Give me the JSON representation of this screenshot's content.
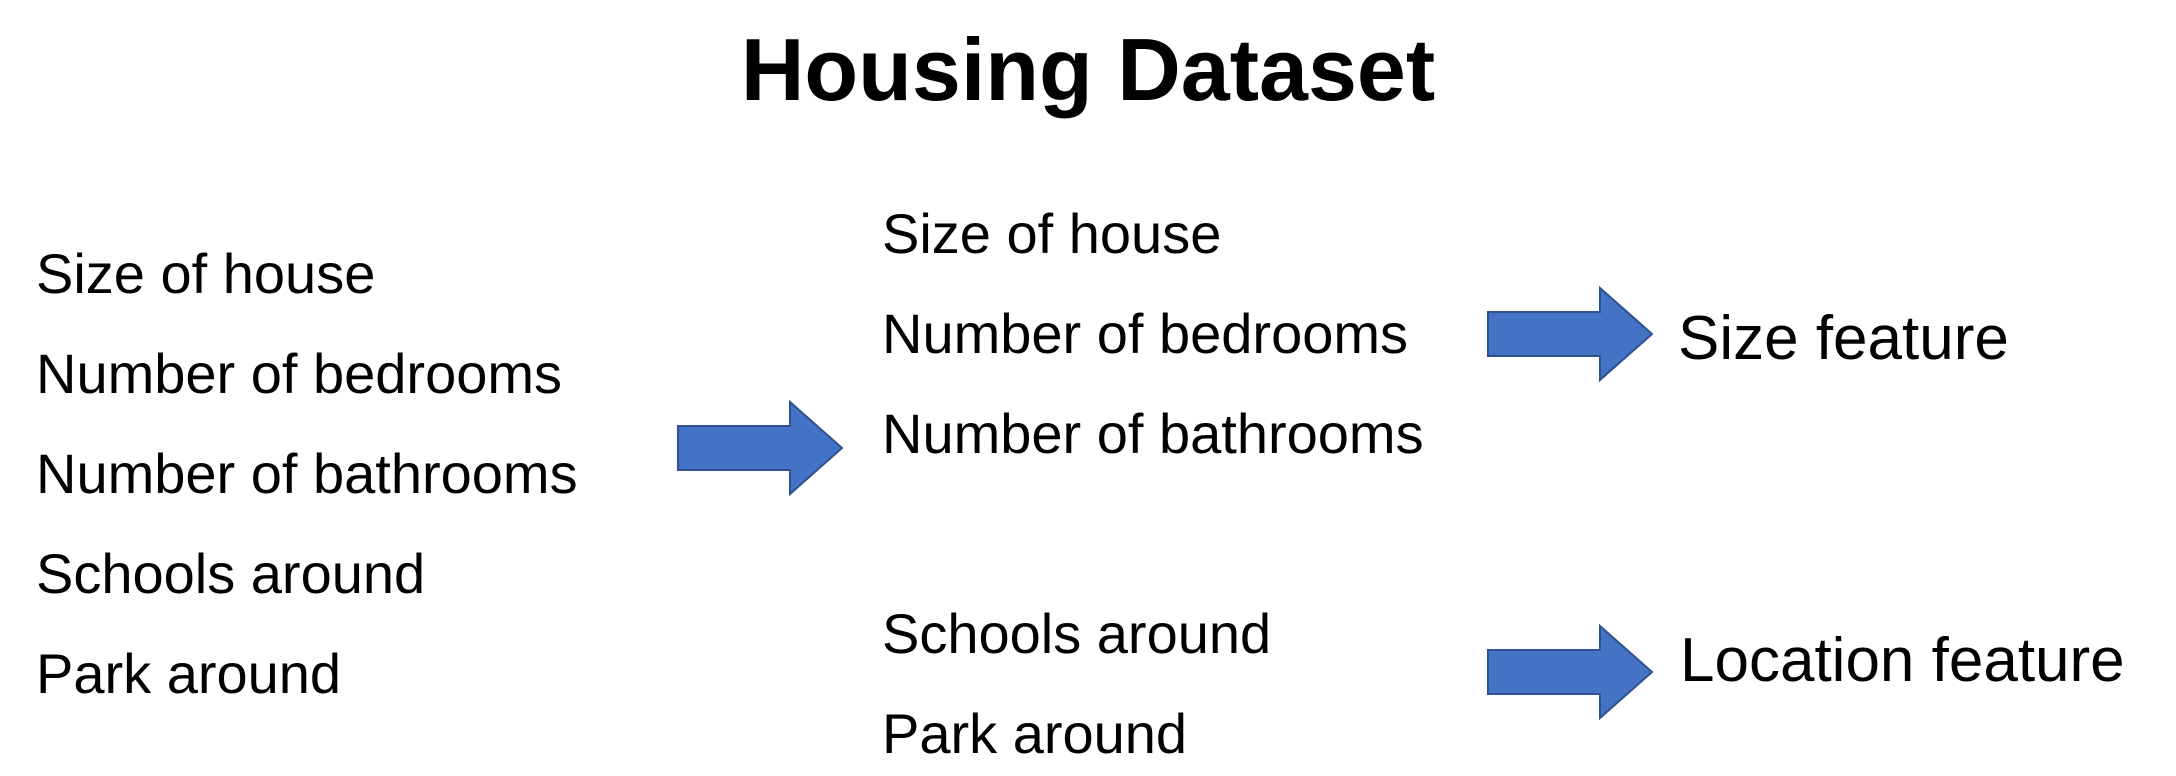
{
  "title": "Housing Dataset",
  "original_features": [
    "Size of house",
    "Number of bedrooms",
    "Number of bathrooms",
    "Schools around",
    "Park around"
  ],
  "groups": [
    {
      "features": [
        "Size of house",
        "Number of bedrooms",
        "Number of bathrooms"
      ],
      "result": "Size feature"
    },
    {
      "features": [
        "Schools around",
        "Park around"
      ],
      "result": "Location feature"
    }
  ],
  "colors": {
    "arrow_fill": "#4472C4",
    "arrow_stroke": "#2F528F"
  },
  "icons": {
    "arrow": "right-arrow-icon"
  }
}
